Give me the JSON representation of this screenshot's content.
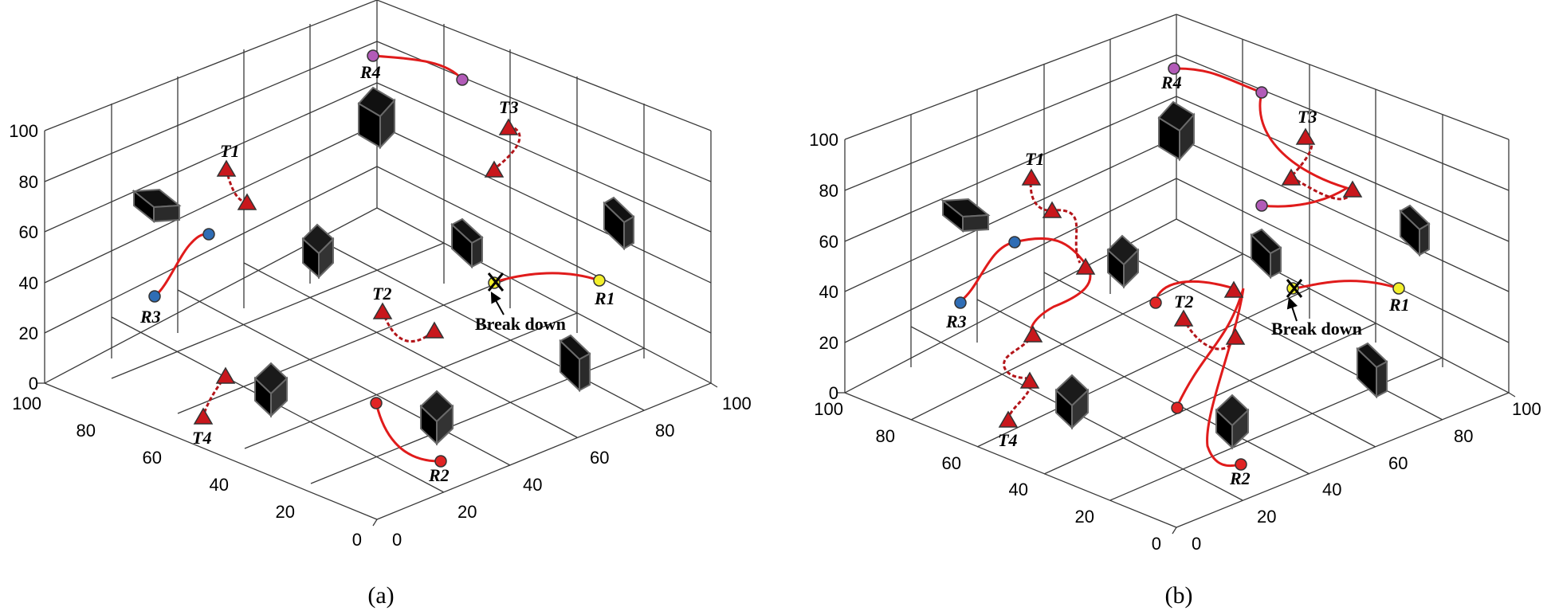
{
  "panels": [
    {
      "caption": "(a)",
      "tick_labels": [
        "0",
        "20",
        "40",
        "60",
        "80",
        "100"
      ],
      "annotation": "Break down",
      "labels": [
        "R1",
        "R2",
        "R3",
        "R4",
        "T1",
        "T2",
        "T3",
        "T4"
      ],
      "colors": {
        "R1": "#f2ef2b",
        "R2": "#e02424",
        "R3": "#2f6db5",
        "R4": "#b25bb8",
        "target": "#c8171c",
        "path": "#e01b1b"
      }
    },
    {
      "caption": "(b)",
      "tick_labels": [
        "0",
        "20",
        "40",
        "60",
        "80",
        "100"
      ],
      "annotation": "Break down",
      "labels": [
        "R1",
        "R2",
        "R3",
        "R4",
        "T1",
        "T2",
        "T3",
        "T4"
      ],
      "colors": {
        "R1": "#f2ef2b",
        "R2": "#e02424",
        "R3": "#2f6db5",
        "R4": "#b25bb8",
        "target": "#c8171c",
        "path": "#e01b1b"
      }
    }
  ]
}
